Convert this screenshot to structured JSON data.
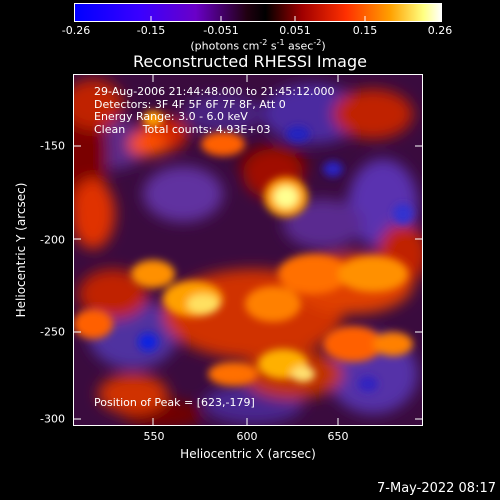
{
  "colorbar": {
    "tick_labels": [
      "-0.26",
      "-0.15",
      "-0.051",
      "0.051",
      "0.15",
      "0.26"
    ],
    "units_text": "(photons cm",
    "units_exp1": "-2",
    "units_mid": " s",
    "units_exp2": "-1",
    "units_mid2": " asec",
    "units_exp3": "-2",
    "units_end": ")",
    "range": [
      -0.26,
      0.26
    ]
  },
  "plot": {
    "title": "Reconstructed RHESSI Image",
    "info_lines": [
      "29-Aug-2006 21:44:48.000 to 21:45:12.000",
      "Detectors: 3F 4F 5F 6F 7F 8F, Att 0",
      "Energy Range: 3.0 - 6.0 keV",
      "Clean     Total counts: 4.93E+03"
    ],
    "peak_text": "Position of Peak = [623,-179]",
    "x_axis_title": "Heliocentric X (arcsec)",
    "y_axis_title": "Heliocentric Y (arcsec)",
    "x_ticks": [
      "550",
      "600",
      "650"
    ],
    "y_ticks": [
      "-150",
      "-200",
      "-250",
      "-300"
    ]
  },
  "footer": {
    "date": "7-May-2022 08:17"
  },
  "colors": {
    "background": "#000000",
    "text": "#ffffff"
  }
}
